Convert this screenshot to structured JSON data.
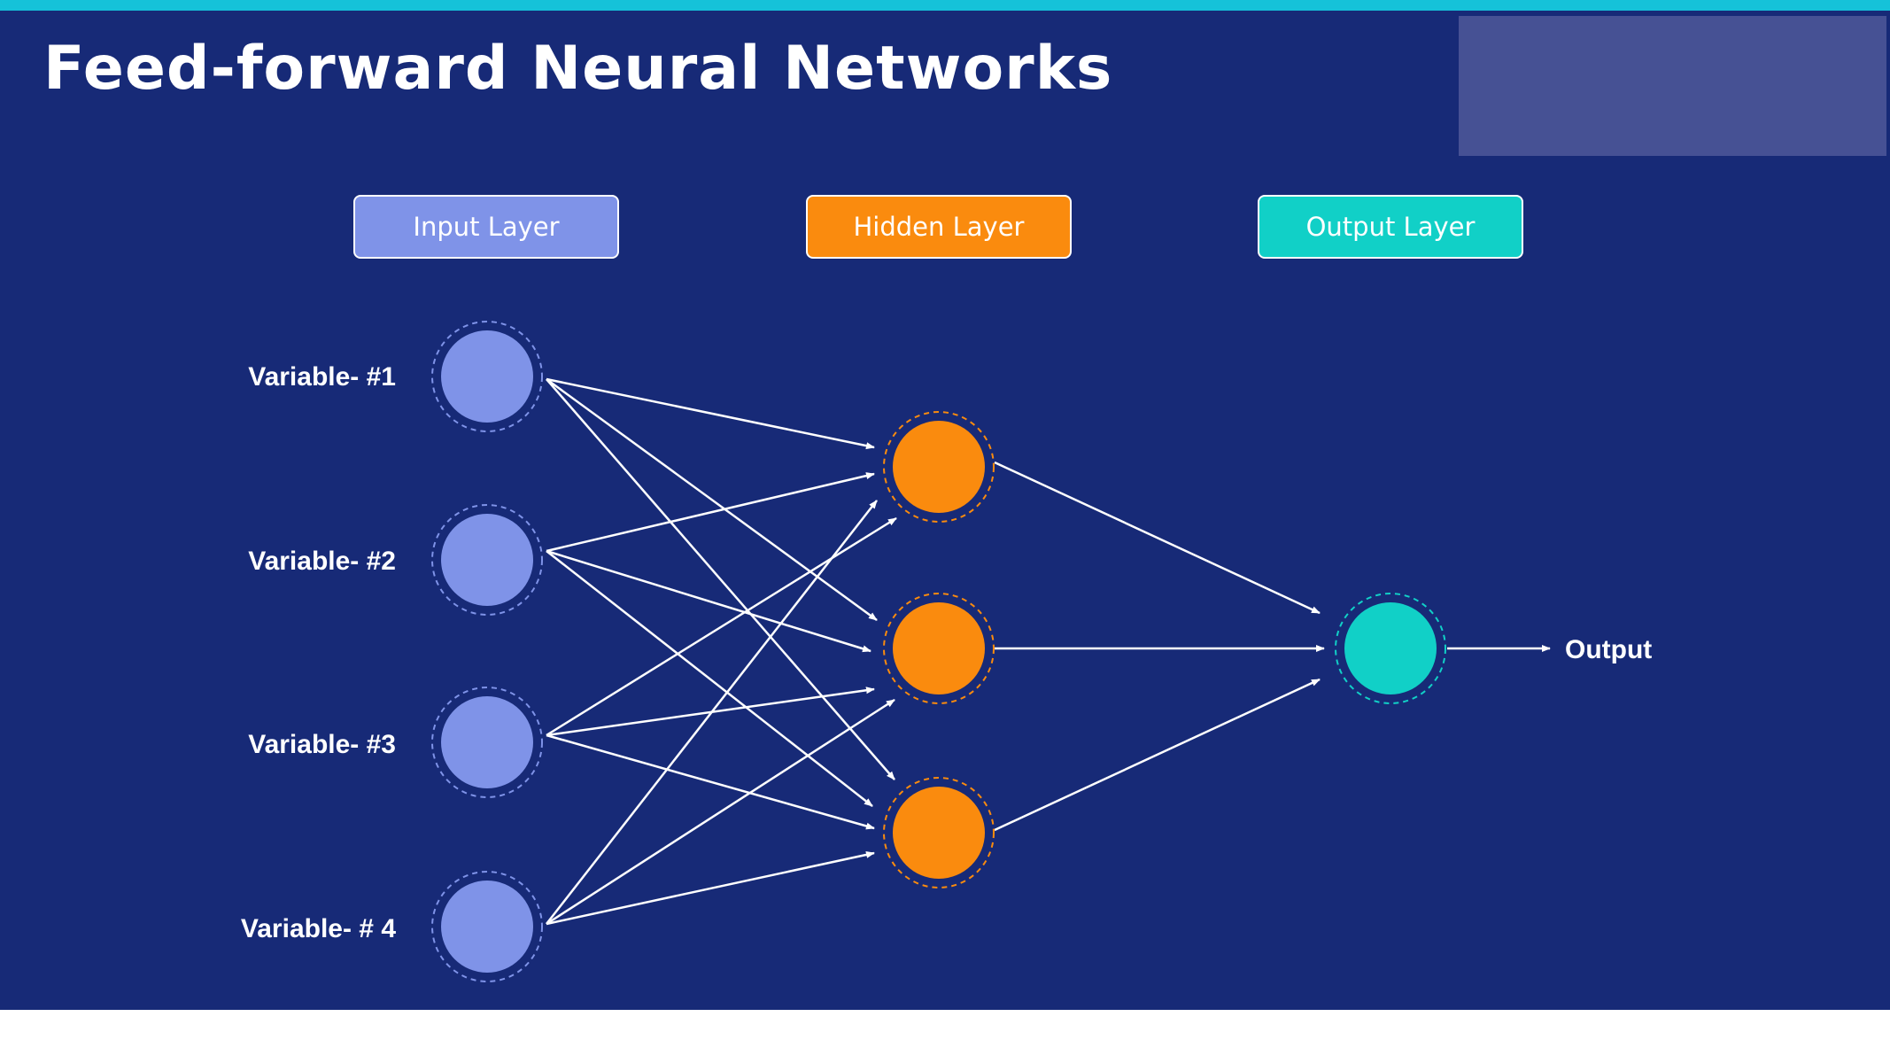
{
  "title": "Feed-forward Neural Networks",
  "layers": {
    "input": "Input Layer",
    "hidden": "Hidden Layer",
    "output": "Output Layer"
  },
  "variables": [
    "Variable- #1",
    "Variable- #2",
    "Variable- #3",
    "Variable- # 4"
  ],
  "output_label": "Output",
  "colors": {
    "background": "#172a77",
    "accent_bar": "#15c2d9",
    "corner_rect": "#465194",
    "input_node": "#7f93e8",
    "hidden_node": "#fa8b0e",
    "output_node": "#11d0c7",
    "connector": "#ffffff"
  }
}
